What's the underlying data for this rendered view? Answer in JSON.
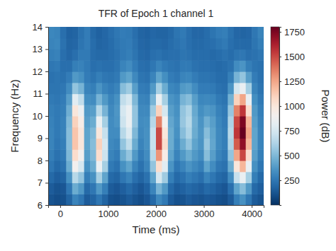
{
  "chart_data": {
    "type": "heatmap",
    "title": "TFR of Epoch 1 channel 1",
    "x_label": "Time (ms)",
    "y_label": "Frequency (Hz)",
    "xlim": [
      -250,
      4250
    ],
    "ylim": [
      6,
      14
    ],
    "xticks": [
      0,
      1000,
      2000,
      3000,
      4000
    ],
    "yticks": [
      6,
      7,
      8,
      9,
      10,
      11,
      12,
      13,
      14
    ],
    "x_bins": [
      -250,
      -125,
      0,
      125,
      250,
      375,
      500,
      625,
      750,
      875,
      1000,
      1125,
      1250,
      1375,
      1500,
      1625,
      1750,
      1875,
      2000,
      2125,
      2250,
      2375,
      2500,
      2625,
      2750,
      2875,
      3000,
      3125,
      3250,
      3375,
      3500,
      3625,
      3750,
      3875,
      4000,
      4125,
      4250
    ],
    "y_bins": [
      6,
      6.5,
      7,
      7.5,
      8,
      8.5,
      9,
      9.5,
      10,
      10.5,
      11,
      11.5,
      12,
      12.5,
      13,
      13.5,
      14
    ],
    "z": [
      [
        120,
        100,
        110,
        180,
        300,
        250,
        150,
        180,
        250,
        180,
        110,
        100,
        120,
        150,
        120,
        100,
        130,
        200,
        320,
        260,
        150,
        110,
        120,
        150,
        130,
        120,
        140,
        130,
        110,
        100,
        150,
        280,
        350,
        250,
        150,
        120
      ],
      [
        150,
        120,
        130,
        250,
        450,
        380,
        200,
        250,
        380,
        280,
        150,
        130,
        160,
        200,
        160,
        130,
        170,
        300,
        480,
        380,
        200,
        150,
        170,
        200,
        180,
        160,
        200,
        180,
        150,
        130,
        220,
        420,
        520,
        380,
        200,
        160
      ],
      [
        200,
        160,
        180,
        350,
        650,
        550,
        280,
        350,
        600,
        420,
        200,
        180,
        250,
        300,
        220,
        180,
        230,
        420,
        750,
        580,
        280,
        200,
        230,
        280,
        250,
        220,
        300,
        250,
        200,
        180,
        330,
        700,
        850,
        600,
        280,
        200
      ],
      [
        250,
        200,
        230,
        450,
        900,
        750,
        350,
        450,
        850,
        600,
        260,
        230,
        350,
        420,
        300,
        230,
        300,
        550,
        1050,
        800,
        360,
        250,
        300,
        360,
        320,
        280,
        420,
        330,
        250,
        230,
        450,
        1000,
        1200,
        850,
        350,
        250
      ],
      [
        280,
        230,
        260,
        500,
        1050,
        900,
        400,
        500,
        1050,
        720,
        300,
        270,
        450,
        550,
        380,
        270,
        330,
        650,
        1300,
        950,
        420,
        300,
        380,
        450,
        380,
        330,
        520,
        400,
        300,
        260,
        550,
        1250,
        1500,
        1050,
        400,
        280
      ],
      [
        300,
        250,
        280,
        520,
        1150,
        1000,
        420,
        520,
        1100,
        750,
        320,
        300,
        550,
        680,
        450,
        300,
        350,
        700,
        1500,
        1050,
        450,
        330,
        450,
        550,
        420,
        360,
        560,
        430,
        320,
        280,
        620,
        1450,
        1700,
        1200,
        420,
        300
      ],
      [
        300,
        260,
        290,
        520,
        1150,
        1000,
        420,
        500,
        1000,
        700,
        330,
        330,
        650,
        780,
        500,
        320,
        350,
        700,
        1500,
        1000,
        450,
        350,
        520,
        620,
        450,
        370,
        520,
        420,
        320,
        280,
        650,
        1550,
        1800,
        1250,
        420,
        300
      ],
      [
        290,
        260,
        290,
        500,
        1100,
        950,
        400,
        450,
        850,
        600,
        330,
        360,
        720,
        850,
        550,
        330,
        340,
        650,
        1350,
        900,
        430,
        360,
        560,
        650,
        460,
        360,
        460,
        400,
        310,
        270,
        620,
        1500,
        1750,
        1200,
        400,
        290
      ],
      [
        280,
        260,
        280,
        460,
        1000,
        850,
        380,
        400,
        650,
        480,
        320,
        370,
        750,
        850,
        550,
        320,
        320,
        580,
        1100,
        750,
        400,
        350,
        550,
        620,
        440,
        340,
        380,
        360,
        290,
        260,
        560,
        1350,
        1550,
        1050,
        380,
        280
      ],
      [
        260,
        250,
        270,
        400,
        800,
        680,
        340,
        330,
        480,
        380,
        300,
        350,
        680,
        750,
        500,
        300,
        290,
        480,
        850,
        600,
        360,
        330,
        480,
        520,
        400,
        310,
        320,
        310,
        260,
        240,
        470,
        1100,
        1250,
        850,
        340,
        260
      ],
      [
        240,
        240,
        250,
        330,
        550,
        480,
        300,
        280,
        360,
        300,
        270,
        300,
        520,
        580,
        400,
        270,
        260,
        380,
        600,
        450,
        310,
        290,
        380,
        400,
        330,
        270,
        270,
        260,
        230,
        220,
        360,
        750,
        850,
        600,
        300,
        240
      ],
      [
        230,
        240,
        230,
        270,
        380,
        350,
        270,
        240,
        280,
        250,
        240,
        260,
        380,
        420,
        320,
        240,
        230,
        300,
        420,
        340,
        270,
        250,
        300,
        310,
        270,
        240,
        240,
        230,
        210,
        210,
        280,
        480,
        550,
        400,
        270,
        230
      ],
      [
        250,
        260,
        220,
        220,
        280,
        290,
        260,
        220,
        230,
        220,
        220,
        240,
        300,
        330,
        270,
        220,
        210,
        250,
        300,
        260,
        240,
        230,
        260,
        260,
        230,
        220,
        220,
        210,
        200,
        210,
        230,
        330,
        360,
        280,
        240,
        230
      ],
      [
        280,
        290,
        220,
        190,
        220,
        260,
        260,
        210,
        200,
        200,
        210,
        230,
        260,
        280,
        240,
        200,
        190,
        220,
        230,
        210,
        220,
        220,
        240,
        230,
        210,
        210,
        210,
        200,
        210,
        230,
        210,
        240,
        250,
        220,
        230,
        250
      ],
      [
        300,
        310,
        230,
        180,
        190,
        240,
        270,
        210,
        180,
        190,
        210,
        240,
        260,
        270,
        230,
        190,
        180,
        200,
        200,
        190,
        210,
        230,
        250,
        220,
        200,
        200,
        210,
        220,
        240,
        260,
        220,
        200,
        200,
        200,
        240,
        280
      ],
      [
        310,
        300,
        220,
        170,
        180,
        230,
        270,
        200,
        170,
        190,
        220,
        250,
        270,
        260,
        220,
        180,
        170,
        190,
        180,
        180,
        200,
        240,
        260,
        220,
        190,
        190,
        210,
        240,
        270,
        280,
        230,
        190,
        180,
        190,
        250,
        300
      ]
    ],
    "colorbar_range": [
      0,
      1800
    ],
    "colorbar_ticks": [
      250,
      500,
      750,
      1000,
      1250,
      1500,
      1750
    ],
    "colorbar_label": "Power (dB)"
  }
}
